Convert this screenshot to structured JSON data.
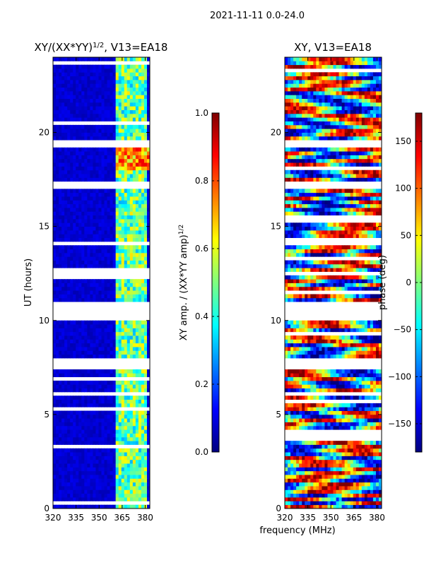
{
  "figure": {
    "suptitle": "2021-11-11 0.0-24.0",
    "xlabel_shared": "frequency (MHz)"
  },
  "chart_data": [
    {
      "type": "heatmap",
      "title_base": "XY/(XX*YY)",
      "title_sup": "1/2",
      "title_tail": ", V13=EA18",
      "xlabel": "",
      "ylabel": "UT (hours)",
      "xlim": [
        320,
        383
      ],
      "ylim": [
        0,
        24
      ],
      "xticks": [
        320,
        335,
        350,
        365,
        380
      ],
      "yticks": [
        0,
        5,
        10,
        15,
        20
      ],
      "data_gaps_hours": [
        [
          10.0,
          11.0
        ],
        [
          7.4,
          8.1
        ],
        [
          17.0,
          17.3
        ],
        [
          12.3,
          12.6
        ],
        [
          19.3,
          19.5
        ],
        [
          6.1,
          6.3
        ]
      ],
      "colorbar": {
        "label_base": "XY amp. / (XX*YY amp)",
        "label_sup": "1/2",
        "min": 0.0,
        "max": 1.0,
        "ticks": [
          0.0,
          0.2,
          0.4,
          0.6,
          0.8,
          1.0
        ],
        "tick_labels": [
          "0.0",
          "0.2",
          "0.4",
          "0.6",
          "0.8",
          "1.0"
        ]
      }
    },
    {
      "type": "heatmap",
      "title": "XY, V13=EA18",
      "xlabel": "",
      "ylabel": "",
      "xlim": [
        320,
        383
      ],
      "ylim": [
        0,
        24
      ],
      "xticks": [
        320,
        335,
        350,
        365,
        380
      ],
      "yticks": [
        0,
        5,
        10,
        15,
        20
      ],
      "data_gaps_hours": [
        [
          10.0,
          11.0
        ],
        [
          7.4,
          8.1
        ],
        [
          17.0,
          17.3
        ],
        [
          12.3,
          12.6
        ],
        [
          19.3,
          19.5
        ],
        [
          6.1,
          6.3
        ]
      ],
      "colorbar": {
        "label": "phase (deg)",
        "min": -180,
        "max": 180,
        "ticks": [
          -150,
          -100,
          -50,
          0,
          50,
          100,
          150
        ],
        "tick_labels": [
          "−150",
          "−100",
          "−50",
          "0",
          "50",
          "100",
          "150"
        ]
      }
    }
  ],
  "colors": {
    "jet": [
      "#00007f",
      "#0000ff",
      "#007fff",
      "#00ffff",
      "#7fff7f",
      "#ffff00",
      "#ff7f00",
      "#ff0000",
      "#7f0000"
    ]
  }
}
